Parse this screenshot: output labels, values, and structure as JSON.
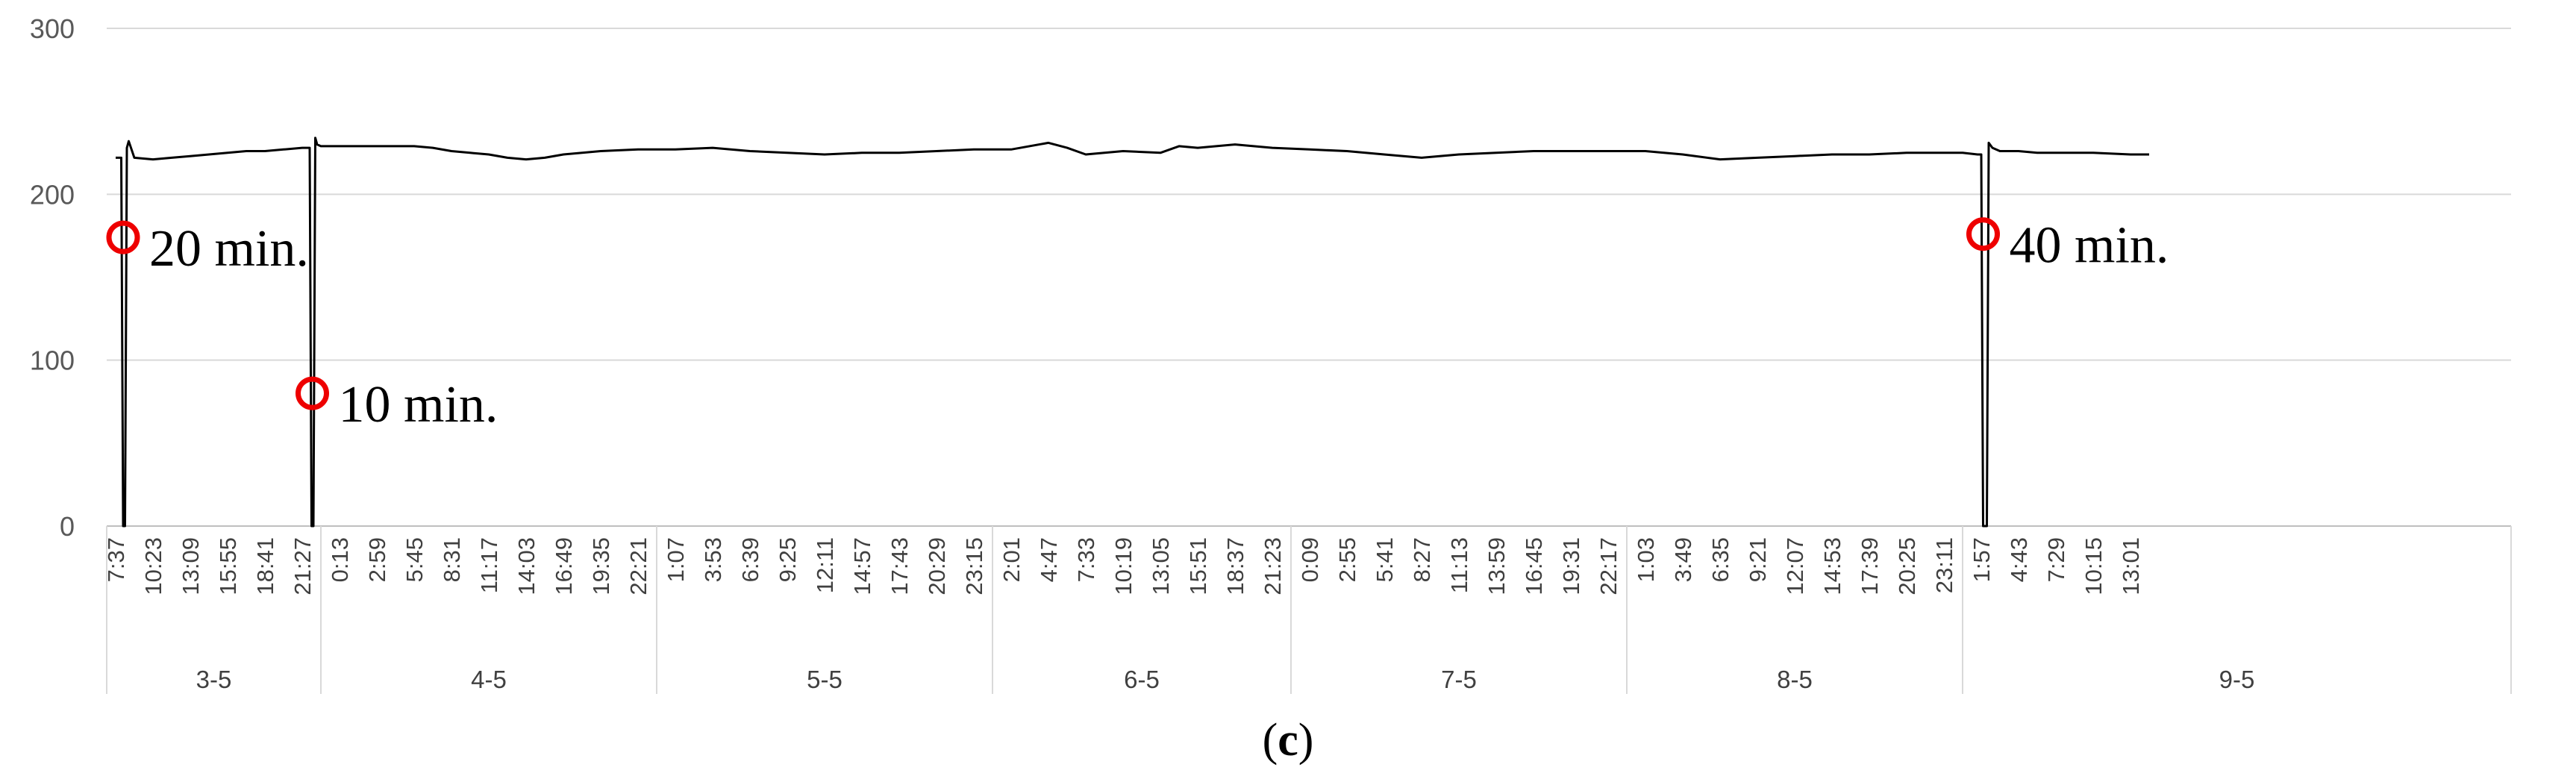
{
  "chart_data": {
    "type": "line",
    "title": "",
    "xlabel": "",
    "ylabel": "",
    "ylim": [
      0,
      300
    ],
    "yticks": [
      0,
      100,
      200,
      300
    ],
    "grid": true,
    "legend": "none",
    "panel_label": "c",
    "x_ticks": [
      "7:37",
      "10:23",
      "13:09",
      "15:55",
      "18:41",
      "21:27",
      "0:13",
      "2:59",
      "5:45",
      "8:31",
      "11:17",
      "14:03",
      "16:49",
      "19:35",
      "22:21",
      "1:07",
      "3:53",
      "6:39",
      "9:25",
      "12:11",
      "14:57",
      "17:43",
      "20:29",
      "23:15",
      "2:01",
      "4:47",
      "7:33",
      "10:19",
      "13:05",
      "15:51",
      "18:37",
      "21:23",
      "0:09",
      "2:55",
      "5:41",
      "8:27",
      "11:13",
      "13:59",
      "16:45",
      "19:31",
      "22:17",
      "1:03",
      "3:49",
      "6:35",
      "9:21",
      "12:07",
      "14:53",
      "17:39",
      "20:25",
      "23:11",
      "1:57",
      "4:43",
      "7:29",
      "10:15",
      "13:01"
    ],
    "days": [
      {
        "label": "3-5",
        "first_tick": 0,
        "last_tick": 5
      },
      {
        "label": "4-5",
        "first_tick": 6,
        "last_tick": 14
      },
      {
        "label": "5-5",
        "first_tick": 15,
        "last_tick": 23
      },
      {
        "label": "6-5",
        "first_tick": 24,
        "last_tick": 31
      },
      {
        "label": "7-5",
        "first_tick": 32,
        "last_tick": 40
      },
      {
        "label": "8-5",
        "first_tick": 41,
        "last_tick": 49
      },
      {
        "label": "9-5",
        "first_tick": 50,
        "last_tick": 54
      }
    ],
    "series": [
      {
        "color": "#000000",
        "x": [
          0.0,
          0.15,
          0.2,
          0.25,
          0.3,
          0.35,
          0.5,
          1.0,
          1.5,
          2.0,
          2.5,
          3.0,
          3.5,
          4.0,
          4.5,
          5.0,
          5.2,
          5.25,
          5.3,
          5.35,
          5.4,
          5.5,
          6.0,
          6.5,
          7.0,
          7.5,
          8.0,
          8.5,
          9.0,
          9.5,
          10.0,
          10.5,
          11.0,
          11.5,
          12.0,
          13.0,
          14.0,
          15.0,
          16.0,
          17.0,
          18.0,
          19.0,
          20.0,
          21.0,
          22.0,
          23.0,
          24.0,
          25.0,
          25.5,
          26.0,
          27.0,
          28.0,
          28.5,
          29.0,
          30.0,
          31.0,
          32.0,
          33.0,
          34.0,
          35.0,
          36.0,
          37.0,
          38.0,
          39.0,
          40.0,
          41.0,
          42.0,
          43.0,
          44.0,
          45.0,
          46.0,
          47.0,
          48.0,
          49.0,
          49.5,
          49.9,
          50.0,
          50.05,
          50.1,
          50.15,
          50.2,
          50.3,
          50.5,
          51.0,
          51.5,
          52.0,
          53.0,
          54.0,
          54.5
        ],
        "y": [
          222,
          222,
          0,
          0,
          228,
          232,
          222,
          221,
          222,
          223,
          224,
          225,
          226,
          226,
          227,
          228,
          228,
          0,
          0,
          234,
          230,
          229,
          229,
          229,
          229,
          229,
          229,
          228,
          226,
          225,
          224,
          222,
          221,
          222,
          224,
          226,
          227,
          227,
          228,
          226,
          225,
          224,
          225,
          225,
          226,
          227,
          227,
          231,
          228,
          224,
          226,
          225,
          229,
          228,
          230,
          228,
          227,
          226,
          224,
          222,
          224,
          225,
          226,
          226,
          226,
          226,
          224,
          221,
          222,
          223,
          224,
          224,
          225,
          225,
          225,
          224,
          224,
          0,
          0,
          0,
          231,
          228,
          226,
          226,
          225,
          225,
          225,
          224,
          224
        ]
      }
    ],
    "annotations": [
      {
        "text": "20 min.",
        "x": 0.2,
        "y": 174
      },
      {
        "text": "10 min.",
        "x": 5.27,
        "y": 80
      },
      {
        "text": "40 min.",
        "x": 50.05,
        "y": 176
      }
    ]
  }
}
